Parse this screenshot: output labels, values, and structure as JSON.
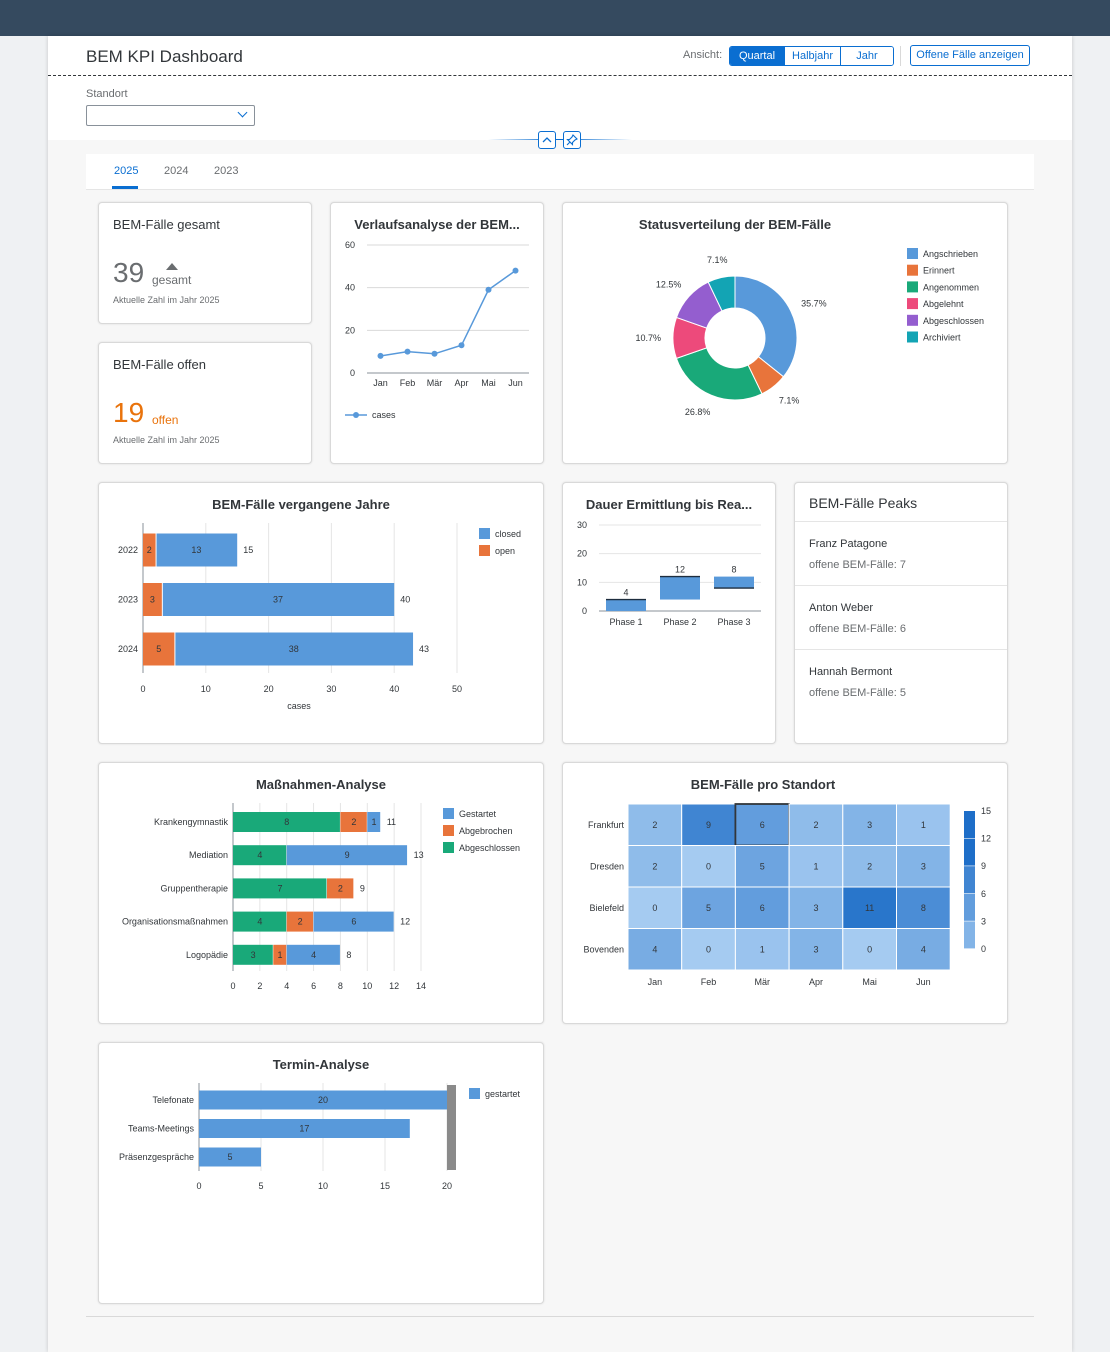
{
  "header": {
    "title": "BEM KPI Dashboard",
    "view_label": "Ansicht:",
    "segments": [
      "Quartal",
      "Halbjahr",
      "Jahr"
    ],
    "open_cases_button": "Offene Fälle anzeigen"
  },
  "filter": {
    "label": "Standort",
    "value": ""
  },
  "tabs": [
    "2025",
    "2024",
    "2023"
  ],
  "kpi_total": {
    "title": "BEM-Fälle gesamt",
    "value": "39",
    "unit": "gesamt",
    "subtitle": "Aktuelle Zahl im Jahr 2025"
  },
  "kpi_open": {
    "title": "BEM-Fälle offen",
    "value": "19",
    "unit": "offen",
    "subtitle": "Aktuelle Zahl im Jahr 2025"
  },
  "peaks": {
    "title": "BEM-Fälle Peaks",
    "items": [
      {
        "name": "Franz Patagone",
        "value": "offene BEM-Fälle: 7"
      },
      {
        "name": "Anton Weber",
        "value": "offene BEM-Fälle: 6"
      },
      {
        "name": "Hannah Bermont",
        "value": "offene BEM-Fälle: 5"
      }
    ]
  },
  "colors": {
    "blue": "#5899da",
    "orange": "#e8743b",
    "green": "#19a979",
    "pink": "#ed4a7b",
    "purple": "#945ecf",
    "teal": "#13a4b4",
    "accent": "#0a6ed1",
    "shell": "#354a5f"
  },
  "chart_data": [
    {
      "id": "trend",
      "type": "line",
      "title": "Verlaufsanalyse der BEM...",
      "categories": [
        "Jan",
        "Feb",
        "Mär",
        "Apr",
        "Mai",
        "Jun"
      ],
      "series": [
        {
          "name": "cases",
          "values": [
            8,
            10,
            9,
            13,
            39,
            48
          ]
        }
      ],
      "ylim": [
        0,
        60
      ],
      "yticks": [
        0,
        20,
        40,
        60
      ]
    },
    {
      "id": "status",
      "type": "pie",
      "title": "Statusverteilung der BEM-Fälle",
      "labels": [
        "Angschrieben",
        "Erinnert",
        "Angenommen",
        "Abgelehnt",
        "Abgeschlossen",
        "Archiviert"
      ],
      "values": [
        35.7,
        7.1,
        26.8,
        10.7,
        12.5,
        7.1
      ],
      "value_labels": [
        "35.7%",
        "7.1%",
        "26.8%",
        "10.7%",
        "12.5%",
        "7.1%"
      ]
    },
    {
      "id": "years",
      "type": "bar",
      "title": "BEM-Fälle vergangene Jahre",
      "categories": [
        "2022",
        "2023",
        "2024"
      ],
      "series": [
        {
          "name": "closed",
          "values": [
            13,
            37,
            38
          ]
        },
        {
          "name": "open",
          "values": [
            2,
            3,
            5
          ]
        }
      ],
      "totals": [
        15,
        40,
        43
      ],
      "xlabel": "cases",
      "xlim": [
        0,
        50
      ],
      "xticks": [
        0,
        10,
        20,
        30,
        40,
        50
      ]
    },
    {
      "id": "duration",
      "type": "bar",
      "title": "Dauer Ermittlung bis Rea...",
      "categories": [
        "Phase 1",
        "Phase 2",
        "Phase 3"
      ],
      "values": [
        4,
        12,
        8
      ],
      "ylim": [
        0,
        30
      ],
      "yticks": [
        0,
        10,
        20,
        30
      ]
    },
    {
      "id": "measures",
      "type": "bar",
      "title": "Maßnahmen-Analyse",
      "categories": [
        "Krankengymnastik",
        "Mediation",
        "Gruppentherapie",
        "Organisationsmaßnahmen",
        "Logopädie"
      ],
      "series": [
        {
          "name": "Abgeschlossen",
          "values": [
            8,
            4,
            7,
            4,
            3
          ]
        },
        {
          "name": "Abgebrochen",
          "values": [
            2,
            0,
            2,
            2,
            1
          ]
        },
        {
          "name": "Gestartet",
          "values": [
            1,
            9,
            0,
            6,
            4
          ]
        }
      ],
      "totals": [
        11,
        13,
        9,
        12,
        8
      ],
      "legend": [
        "Gestartet",
        "Abgebrochen",
        "Abgeschlossen"
      ],
      "xlim": [
        0,
        14
      ],
      "xticks": [
        0,
        2,
        4,
        6,
        8,
        10,
        12,
        14
      ]
    },
    {
      "id": "heatmap",
      "type": "heatmap",
      "title": "BEM-Fälle pro Standort",
      "rows": [
        "Frankfurt",
        "Dresden",
        "Bielefeld",
        "Bovenden"
      ],
      "columns": [
        "Jan",
        "Feb",
        "Mär",
        "Apr",
        "Mai",
        "Jun"
      ],
      "values": [
        [
          2,
          9,
          6,
          2,
          3,
          1
        ],
        [
          2,
          0,
          5,
          1,
          2,
          3
        ],
        [
          0,
          5,
          6,
          3,
          11,
          8
        ],
        [
          4,
          0,
          1,
          3,
          0,
          4
        ]
      ],
      "scale": [
        15,
        12,
        9,
        6,
        3,
        0
      ]
    },
    {
      "id": "appointments",
      "type": "bar",
      "title": "Termin-Analyse",
      "categories": [
        "Telefonate",
        "Teams-Meetings",
        "Präsenzgespräche"
      ],
      "series": [
        {
          "name": "gestartet",
          "values": [
            20,
            17,
            5
          ]
        }
      ],
      "xlim": [
        0,
        20
      ],
      "xticks": [
        0,
        5,
        10,
        15,
        20
      ]
    }
  ]
}
